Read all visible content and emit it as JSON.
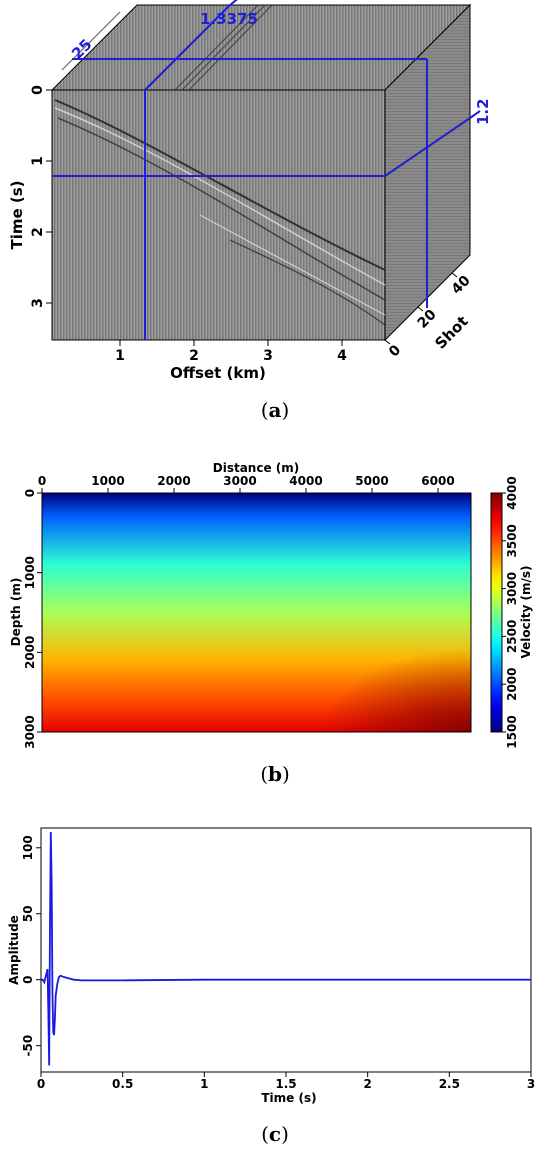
{
  "panels": [
    {
      "caption_letter": "a"
    },
    {
      "caption_letter": "b"
    },
    {
      "caption_letter": "c"
    }
  ],
  "cube": {
    "time_label": "Time (s)",
    "offset_label": "Offset (km)",
    "shot_label": "Shot",
    "time_ticks": [
      "0",
      "1",
      "2",
      "3"
    ],
    "offset_ticks": [
      "1",
      "2",
      "3",
      "4"
    ],
    "shot_ticks": [
      "0",
      "20",
      "40"
    ],
    "slice_offset_value": "1.3375",
    "slice_time_value": "1.2",
    "slice_shot_value": "25",
    "slice_color": "#1f1fd6"
  },
  "chart_data": [
    {
      "type": "heatmap",
      "title": "",
      "xlabel": "Distance (m)",
      "ylabel": "Depth (m)",
      "xlim": [
        0,
        6500
      ],
      "ylim": [
        0,
        3000
      ],
      "x_ticks": [
        "0",
        "1000",
        "2000",
        "3000",
        "4000",
        "5000",
        "6000"
      ],
      "y_ticks": [
        "0",
        "1000",
        "2000",
        "3000"
      ],
      "colorbar": {
        "label": "Velocity (m/s)",
        "range": [
          1500,
          4000
        ],
        "ticks": [
          "1500",
          "2000",
          "2500",
          "3000",
          "3500",
          "4000"
        ]
      },
      "depth_profile": [
        {
          "depth": 0,
          "velocity": 1500
        },
        {
          "depth": 300,
          "velocity": 2050
        },
        {
          "depth": 900,
          "velocity": 2550
        },
        {
          "depth": 1500,
          "velocity": 2850
        },
        {
          "depth": 2100,
          "velocity": 3250
        },
        {
          "depth": 2600,
          "velocity": 3500
        },
        {
          "depth": 3000,
          "velocity": 3750
        }
      ]
    },
    {
      "type": "line",
      "title": "",
      "xlabel": "Time (s)",
      "ylabel": "Amplitude",
      "xlim": [
        0,
        3
      ],
      "ylim": [
        -70,
        115
      ],
      "x_ticks": [
        "0",
        "0.5",
        "1",
        "1.5",
        "2",
        "2.5",
        "3"
      ],
      "y_ticks": [
        "-50",
        "0",
        "50",
        "100"
      ],
      "series": [
        {
          "color": "#1a1adf",
          "x": [
            0,
            0.01,
            0.02,
            0.03,
            0.04,
            0.045,
            0.05,
            0.055,
            0.06,
            0.065,
            0.07,
            0.075,
            0.08,
            0.085,
            0.09,
            0.1,
            0.11,
            0.12,
            0.14,
            0.17,
            0.2,
            0.25,
            0.35,
            0.5,
            1.0,
            2.0,
            3.0
          ],
          "y": [
            0,
            0,
            -2,
            3,
            8,
            -25,
            -65,
            40,
            112,
            75,
            -10,
            -40,
            -42,
            -30,
            -12,
            -3,
            2,
            3,
            2,
            1,
            0,
            -0.5,
            -0.5,
            -0.5,
            0,
            0,
            0
          ]
        }
      ]
    }
  ]
}
